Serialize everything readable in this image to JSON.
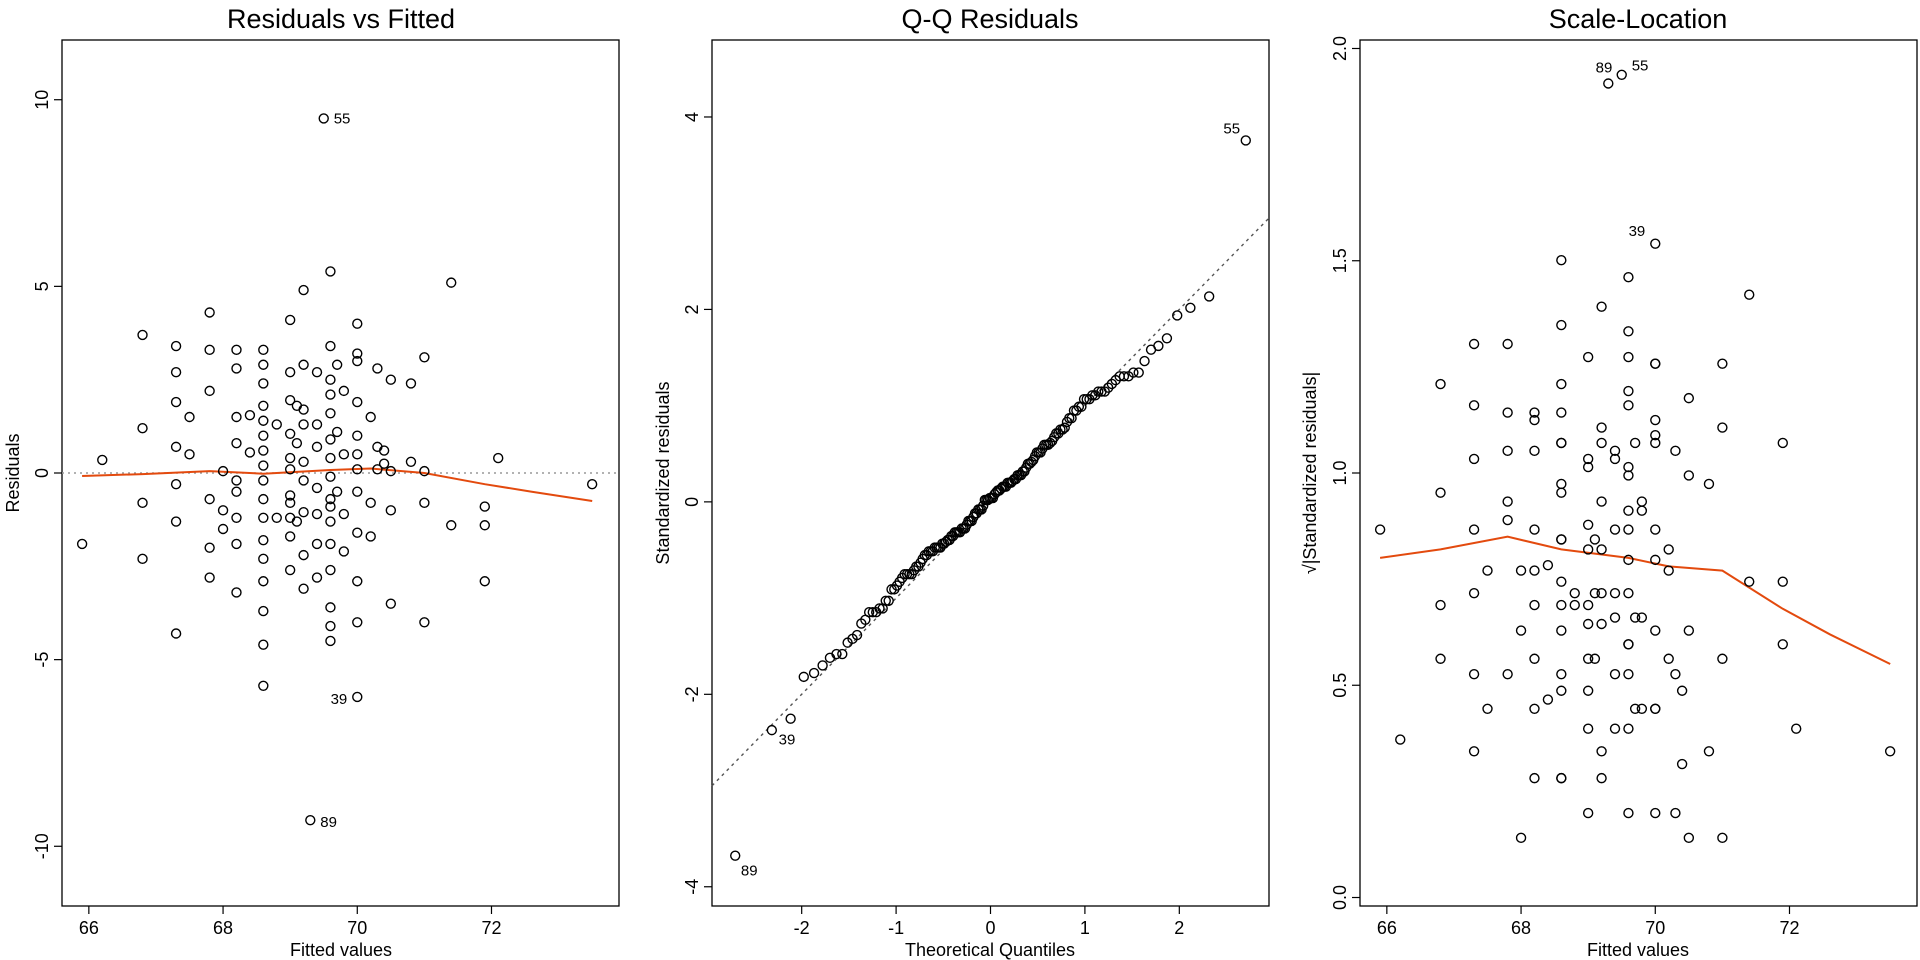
{
  "chart_data": [
    {
      "type": "scatter",
      "id": "rvf",
      "title": "Residuals vs Fitted",
      "xlabel": "Fitted values",
      "ylabel": "Residuals",
      "xlim": [
        65.6,
        73.9
      ],
      "ylim": [
        -11.6,
        11.6
      ],
      "xticks": [
        66,
        68,
        70,
        72
      ],
      "yticks": [
        -10,
        -5,
        0,
        5,
        10
      ],
      "hline": 0,
      "points": [
        [
          65.9,
          -1.9
        ],
        [
          66.2,
          0.35
        ],
        [
          66.8,
          3.7
        ],
        [
          66.8,
          1.2
        ],
        [
          66.8,
          -0.8
        ],
        [
          66.8,
          -2.3
        ],
        [
          67.3,
          3.4
        ],
        [
          67.3,
          2.7
        ],
        [
          67.3,
          1.9
        ],
        [
          67.3,
          0.7
        ],
        [
          67.3,
          -0.3
        ],
        [
          67.3,
          -1.3
        ],
        [
          67.3,
          -4.3
        ],
        [
          67.5,
          1.5
        ],
        [
          67.5,
          0.5
        ],
        [
          67.8,
          4.3
        ],
        [
          67.8,
          3.3
        ],
        [
          67.8,
          2.2
        ],
        [
          67.8,
          -0.7
        ],
        [
          67.8,
          -2
        ],
        [
          67.8,
          -2.8
        ],
        [
          68,
          0.05
        ],
        [
          68,
          -1
        ],
        [
          68,
          -1.5
        ],
        [
          68.2,
          3.3
        ],
        [
          68.2,
          2.8
        ],
        [
          68.2,
          1.5
        ],
        [
          68.2,
          0.8
        ],
        [
          68.2,
          -0.2
        ],
        [
          68.2,
          -0.5
        ],
        [
          68.2,
          -1.2
        ],
        [
          68.2,
          -1.9
        ],
        [
          68.2,
          -3.2
        ],
        [
          68.4,
          1.55
        ],
        [
          68.4,
          0.55
        ],
        [
          68.6,
          3.3
        ],
        [
          68.6,
          2.9
        ],
        [
          68.6,
          2.4
        ],
        [
          68.6,
          1.8
        ],
        [
          68.6,
          1.4
        ],
        [
          68.6,
          1
        ],
        [
          68.6,
          0.6
        ],
        [
          68.6,
          0.2
        ],
        [
          68.6,
          -0.2
        ],
        [
          68.6,
          -0.7
        ],
        [
          68.6,
          -1.2
        ],
        [
          68.6,
          -1.8
        ],
        [
          68.6,
          -2.3
        ],
        [
          68.6,
          -2.9
        ],
        [
          68.6,
          -3.7
        ],
        [
          68.6,
          -4.6
        ],
        [
          68.6,
          -5.7
        ],
        [
          68.8,
          1.3
        ],
        [
          68.8,
          -1.2
        ],
        [
          69,
          4.1
        ],
        [
          69,
          2.7
        ],
        [
          69,
          1.95
        ],
        [
          69,
          1.05
        ],
        [
          69,
          0.4
        ],
        [
          69,
          0.1
        ],
        [
          69,
          -0.6
        ],
        [
          69,
          -0.8
        ],
        [
          69,
          -1.2
        ],
        [
          69,
          -1.7
        ],
        [
          69,
          -2.6
        ],
        [
          69.1,
          1.8
        ],
        [
          69.1,
          0.8
        ],
        [
          69.1,
          -1.3
        ],
        [
          69.2,
          4.9
        ],
        [
          69.2,
          2.9
        ],
        [
          69.2,
          1.7
        ],
        [
          69.2,
          1.3
        ],
        [
          69.2,
          0.3
        ],
        [
          69.2,
          -0.2
        ],
        [
          69.2,
          -1.05
        ],
        [
          69.2,
          -2.2
        ],
        [
          69.2,
          -3.1
        ],
        [
          69.4,
          2.7
        ],
        [
          69.4,
          1.3
        ],
        [
          69.4,
          0.7
        ],
        [
          69.4,
          -0.4
        ],
        [
          69.4,
          -1.1
        ],
        [
          69.4,
          -1.9
        ],
        [
          69.4,
          -2.8
        ],
        [
          69.6,
          5.4
        ],
        [
          69.6,
          3.4
        ],
        [
          69.6,
          2.5
        ],
        [
          69.6,
          2.1
        ],
        [
          69.6,
          1.6
        ],
        [
          69.6,
          0.9
        ],
        [
          69.6,
          0.4
        ],
        [
          69.6,
          -0.1
        ],
        [
          69.6,
          -0.7
        ],
        [
          69.6,
          -0.9
        ],
        [
          69.6,
          -1.3
        ],
        [
          69.6,
          -1.9
        ],
        [
          69.6,
          -2.6
        ],
        [
          69.6,
          -3.6
        ],
        [
          69.6,
          -4.1
        ],
        [
          69.6,
          -4.5
        ],
        [
          69.7,
          2.9
        ],
        [
          69.7,
          1.1
        ],
        [
          69.7,
          -0.5
        ],
        [
          69.8,
          2.2
        ],
        [
          69.8,
          0.5
        ],
        [
          69.8,
          -1.1
        ],
        [
          69.8,
          -2.1
        ],
        [
          70,
          4
        ],
        [
          70,
          3.2
        ],
        [
          70,
          3
        ],
        [
          70,
          1.9
        ],
        [
          70,
          1
        ],
        [
          70,
          0.5
        ],
        [
          70,
          0.1
        ],
        [
          70,
          -0.5
        ],
        [
          70,
          -1.6
        ],
        [
          70,
          -2.9
        ],
        [
          70,
          -4
        ],
        [
          70.2,
          1.5
        ],
        [
          70.2,
          -0.8
        ],
        [
          70.2,
          -1.7
        ],
        [
          70.3,
          2.8
        ],
        [
          70.3,
          0.7
        ],
        [
          70.3,
          0.1
        ],
        [
          70.4,
          0.6
        ],
        [
          70.4,
          0.25
        ],
        [
          70.5,
          2.5
        ],
        [
          70.5,
          0.05
        ],
        [
          70.5,
          -1
        ],
        [
          70.5,
          -3.5
        ],
        [
          70.8,
          2.4
        ],
        [
          70.8,
          0.3
        ],
        [
          71,
          3.1
        ],
        [
          71,
          0.05
        ],
        [
          71,
          -0.8
        ],
        [
          71,
          -4
        ],
        [
          71.4,
          5.1
        ],
        [
          71.4,
          -1.4
        ],
        [
          71.9,
          -0.9
        ],
        [
          71.9,
          -1.4
        ],
        [
          71.9,
          -2.9
        ],
        [
          72.1,
          0.4
        ],
        [
          73.5,
          -0.3
        ],
        [
          69.5,
          9.5
        ],
        [
          70,
          -6
        ],
        [
          69.3,
          -9.3
        ]
      ],
      "labeled_points": [
        {
          "label": "55",
          "x": 69.5,
          "y": 9.5
        },
        {
          "label": "39",
          "x": 70,
          "y": -6
        },
        {
          "label": "89",
          "x": 69.3,
          "y": -9.3
        }
      ],
      "smooth": {
        "x": [
          65.9,
          66.8,
          67.8,
          68.6,
          69.6,
          70.2,
          71,
          71.9,
          72.6,
          73.5
        ],
        "y": [
          -0.08,
          -0.03,
          0.05,
          -0.02,
          0.08,
          0.12,
          0,
          -0.3,
          -0.5,
          -0.75
        ]
      }
    },
    {
      "type": "scatter",
      "id": "qq",
      "title": "Q-Q Residuals",
      "xlabel": "Theoretical Quantiles",
      "ylabel": "Standardized residuals",
      "xlim": [
        -2.95,
        2.95
      ],
      "ylim": [
        -4.2,
        4.8
      ],
      "xticks": [
        -2,
        -1,
        0,
        1,
        2
      ],
      "yticks": [
        -4,
        -2,
        0,
        2,
        4
      ],
      "reference_line": {
        "slope": 1.0,
        "intercept": 0
      },
      "points_from": "rvf.points",
      "labeled_points": [
        {
          "label": "55",
          "x": 2.75,
          "y": 3.88
        },
        {
          "label": "39",
          "x": -2.35,
          "y": -2.47
        },
        {
          "label": "89",
          "x": -2.75,
          "y": -3.83
        }
      ]
    },
    {
      "type": "scatter",
      "id": "sl",
      "title": "Scale-Location",
      "xlabel": "Fitted values",
      "ylabel": "√|Standardized residuals|",
      "xlim": [
        65.6,
        73.9
      ],
      "ylim": [
        -0.02,
        2.02
      ],
      "xticks": [
        66,
        68,
        70,
        72
      ],
      "yticks": [
        0.0,
        0.5,
        1.0,
        1.5,
        2.0
      ],
      "ytick_labels": [
        "0.0",
        "0.5",
        "1.0",
        "1.5",
        "2.0"
      ],
      "points_from": "rvf.points",
      "labeled_points": [
        {
          "label": "89",
          "x": 69.3,
          "y": 1.955
        },
        {
          "label": "55",
          "x": 69.5,
          "y": 1.96
        },
        {
          "label": "39",
          "x": 70,
          "y": 1.57
        }
      ],
      "smooth": {
        "x": [
          65.9,
          66.8,
          67.8,
          68.6,
          69.6,
          70.2,
          71,
          71.9,
          72.6,
          73.5
        ],
        "y": [
          0.8,
          0.82,
          0.85,
          0.82,
          0.8,
          0.78,
          0.77,
          0.68,
          0.62,
          0.55
        ]
      }
    }
  ]
}
